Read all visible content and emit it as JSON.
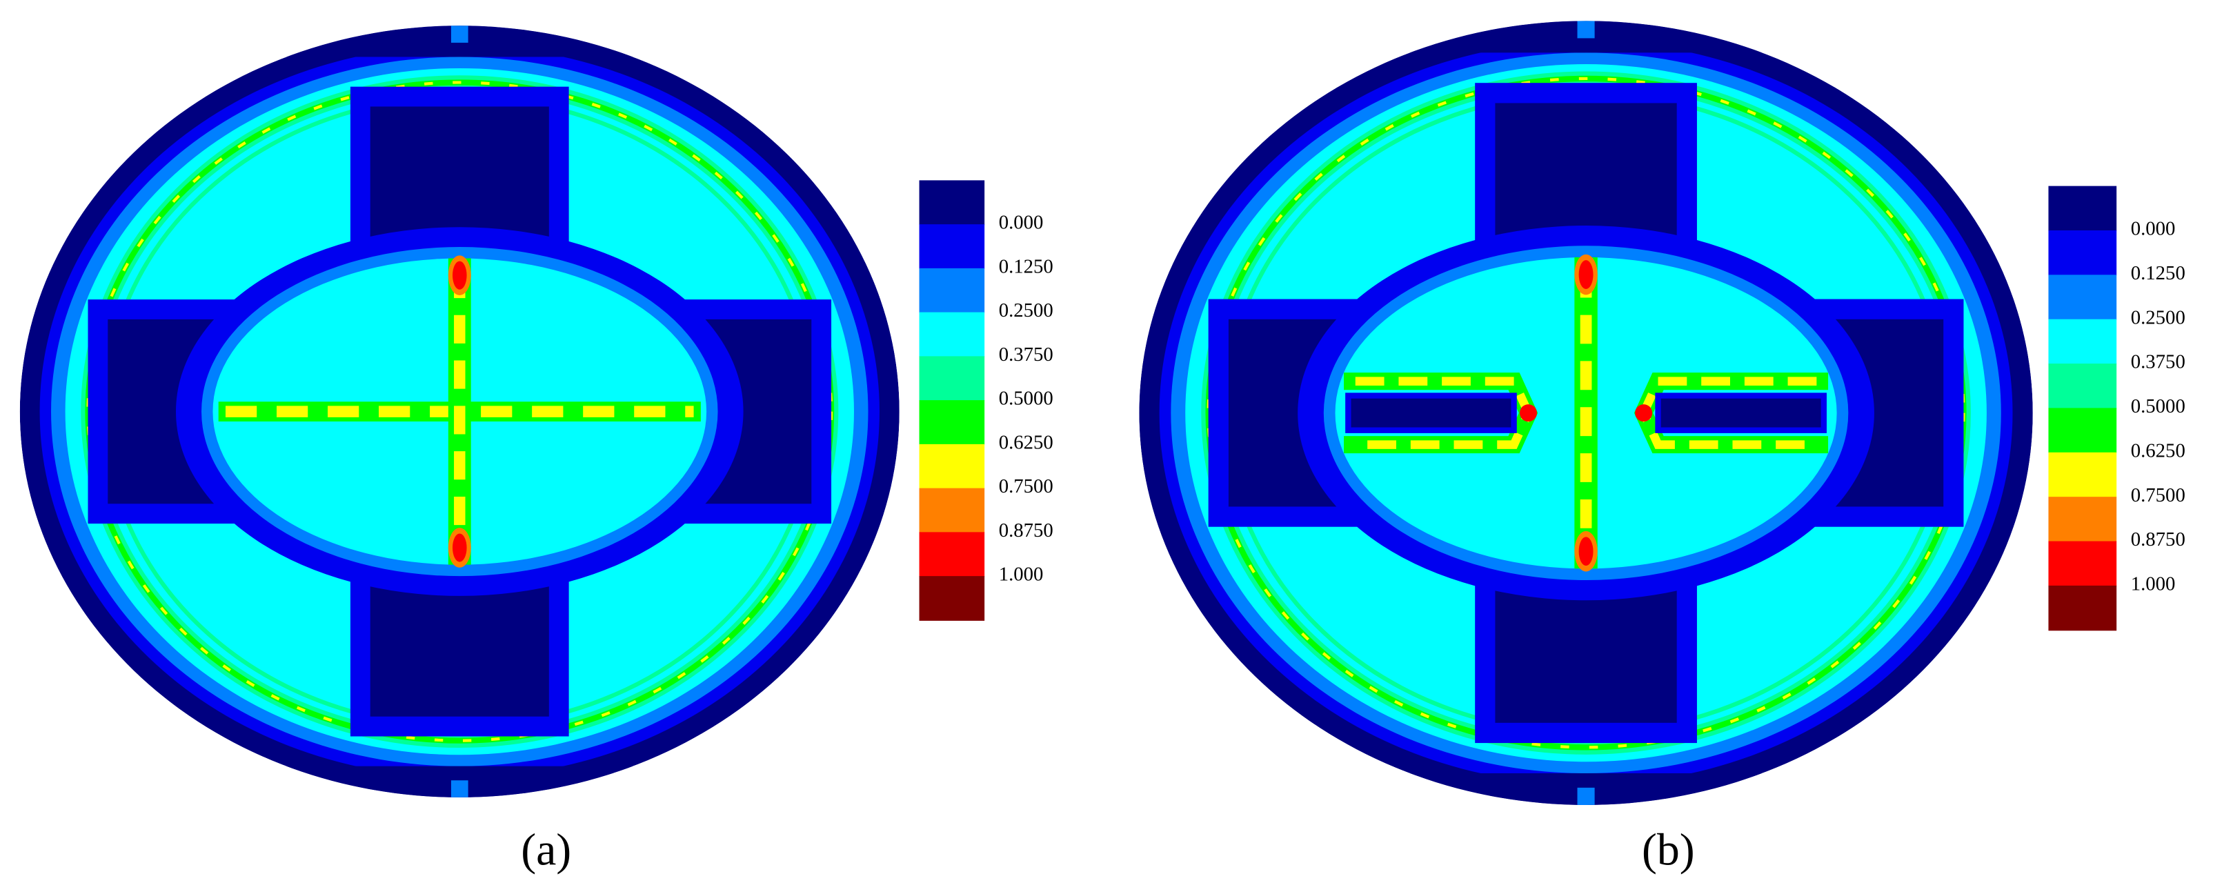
{
  "chart_data": [
    {
      "type": "contour",
      "caption": "(a)",
      "colorbar": {
        "colors": [
          "#000080",
          "#0000f0",
          "#0080ff",
          "#00ffff",
          "#00ff99",
          "#00ff00",
          "#ffff00",
          "#ff8000",
          "#ff0000",
          "#800000"
        ],
        "ticks": [
          {
            "value": 0,
            "label": "0.000"
          },
          {
            "value": 0.125,
            "label": "0.1250"
          },
          {
            "value": 0.25,
            "label": "0.2500"
          },
          {
            "value": 0.375,
            "label": "0.3750"
          },
          {
            "value": 0.5,
            "label": "0.5000"
          },
          {
            "value": 0.625,
            "label": "0.6250"
          },
          {
            "value": 0.75,
            "label": "0.7500"
          },
          {
            "value": 0.875,
            "label": "0.8750"
          },
          {
            "value": 1,
            "label": "1.000"
          }
        ]
      }
    },
    {
      "type": "contour",
      "caption": "(b)",
      "colorbar": {
        "colors": [
          "#000080",
          "#0000f0",
          "#0080ff",
          "#00ffff",
          "#00ff99",
          "#00ff00",
          "#ffff00",
          "#ff8000",
          "#ff0000",
          "#800000"
        ],
        "ticks": [
          {
            "value": 0,
            "label": "0.000"
          },
          {
            "value": 0.125,
            "label": "0.1250"
          },
          {
            "value": 0.25,
            "label": "0.2500"
          },
          {
            "value": 0.375,
            "label": "0.3750"
          },
          {
            "value": 0.5,
            "label": "0.5000"
          },
          {
            "value": 0.625,
            "label": "0.6250"
          },
          {
            "value": 0.75,
            "label": "0.7500"
          },
          {
            "value": 0.875,
            "label": "0.8750"
          },
          {
            "value": 1,
            "label": "1.000"
          }
        ]
      }
    }
  ]
}
